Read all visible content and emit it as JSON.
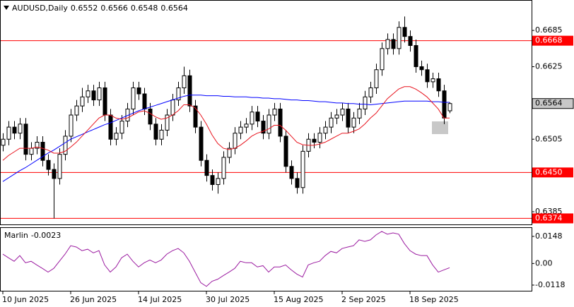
{
  "chart_data": [
    {
      "type": "candlestick",
      "title": "AUDUSD,Daily",
      "categories": [
        "10 Jun 2025",
        null,
        null,
        null,
        null,
        null,
        null,
        null,
        null,
        null,
        null,
        null,
        "26 Jun 2025",
        null,
        null,
        null,
        null,
        null,
        null,
        null,
        null,
        null,
        null,
        null,
        "14 Jul 2025",
        null,
        null,
        null,
        null,
        null,
        null,
        null,
        null,
        null,
        null,
        null,
        "30 Jul 2025",
        null,
        null,
        null,
        null,
        null,
        null,
        null,
        null,
        null,
        null,
        null,
        "15 Aug 2025",
        null,
        null,
        null,
        null,
        null,
        null,
        null,
        null,
        null,
        null,
        null,
        "2 Sep 2025",
        null,
        null,
        null,
        null,
        null,
        null,
        null,
        null,
        null,
        null,
        null,
        "18 Sep 2025",
        null,
        null,
        null,
        null,
        null,
        null,
        null
      ],
      "open": [
        0.6495,
        0.6505,
        0.6525,
        0.6515,
        0.653,
        0.648,
        0.649,
        0.65,
        0.647,
        0.6455,
        0.644,
        0.648,
        0.651,
        0.6545,
        0.656,
        0.6575,
        0.6585,
        0.657,
        0.659,
        0.6545,
        0.6505,
        0.6515,
        0.6535,
        0.6555,
        0.659,
        0.658,
        0.6555,
        0.653,
        0.6505,
        0.652,
        0.6545,
        0.657,
        0.659,
        0.661,
        0.656,
        0.6525,
        0.647,
        0.6445,
        0.643,
        0.644,
        0.6475,
        0.649,
        0.6515,
        0.6525,
        0.653,
        0.655,
        0.6535,
        0.6515,
        0.6545,
        0.6555,
        0.651,
        0.646,
        0.644,
        0.6425,
        0.6485,
        0.6505,
        0.65,
        0.6515,
        0.6525,
        0.654,
        0.6545,
        0.6555,
        0.6525,
        0.654,
        0.6555,
        0.6575,
        0.659,
        0.662,
        0.6655,
        0.667,
        0.6655,
        0.669,
        0.6675,
        0.666,
        0.6625,
        0.662,
        0.66,
        0.6605,
        0.6585,
        0.6552
      ],
      "high": [
        0.6515,
        0.6535,
        0.6535,
        0.654,
        0.654,
        0.65,
        0.651,
        0.651,
        0.648,
        0.6465,
        0.649,
        0.652,
        0.6555,
        0.657,
        0.659,
        0.6595,
        0.6595,
        0.66,
        0.66,
        0.6555,
        0.6525,
        0.6545,
        0.6565,
        0.66,
        0.66,
        0.659,
        0.6565,
        0.654,
        0.653,
        0.6555,
        0.658,
        0.66,
        0.6625,
        0.662,
        0.657,
        0.6535,
        0.648,
        0.6455,
        0.645,
        0.6485,
        0.65,
        0.6525,
        0.6535,
        0.654,
        0.656,
        0.656,
        0.6545,
        0.6555,
        0.6565,
        0.6565,
        0.652,
        0.647,
        0.645,
        0.6495,
        0.6515,
        0.6515,
        0.6525,
        0.6535,
        0.655,
        0.6555,
        0.6565,
        0.6565,
        0.655,
        0.6565,
        0.6585,
        0.66,
        0.663,
        0.6665,
        0.668,
        0.668,
        0.67,
        0.6708,
        0.6685,
        0.667,
        0.6635,
        0.663,
        0.6615,
        0.6615,
        0.6595,
        0.6566
      ],
      "low": [
        0.6485,
        0.6495,
        0.6505,
        0.6505,
        0.647,
        0.647,
        0.648,
        0.646,
        0.6445,
        0.6374,
        0.643,
        0.647,
        0.65,
        0.6535,
        0.655,
        0.6565,
        0.656,
        0.656,
        0.6535,
        0.6495,
        0.6495,
        0.6505,
        0.6525,
        0.6545,
        0.657,
        0.6545,
        0.652,
        0.6495,
        0.6495,
        0.651,
        0.6535,
        0.656,
        0.658,
        0.655,
        0.6515,
        0.646,
        0.6435,
        0.642,
        0.6415,
        0.643,
        0.6465,
        0.648,
        0.6505,
        0.6515,
        0.652,
        0.6525,
        0.6505,
        0.6505,
        0.6535,
        0.65,
        0.645,
        0.643,
        0.6415,
        0.6415,
        0.6475,
        0.649,
        0.649,
        0.6505,
        0.6515,
        0.653,
        0.6535,
        0.6515,
        0.6515,
        0.653,
        0.6545,
        0.6565,
        0.658,
        0.661,
        0.6645,
        0.6645,
        0.6645,
        0.6665,
        0.665,
        0.6615,
        0.661,
        0.659,
        0.659,
        0.6575,
        0.653,
        0.6548
      ],
      "close": [
        0.6505,
        0.6525,
        0.6515,
        0.653,
        0.648,
        0.649,
        0.65,
        0.647,
        0.6455,
        0.644,
        0.648,
        0.651,
        0.6545,
        0.656,
        0.6575,
        0.6585,
        0.657,
        0.659,
        0.6545,
        0.6505,
        0.6515,
        0.6535,
        0.6555,
        0.659,
        0.658,
        0.6555,
        0.653,
        0.6505,
        0.652,
        0.6545,
        0.657,
        0.659,
        0.661,
        0.656,
        0.6525,
        0.647,
        0.6445,
        0.643,
        0.644,
        0.6475,
        0.649,
        0.6515,
        0.6525,
        0.653,
        0.655,
        0.6535,
        0.6515,
        0.6545,
        0.6555,
        0.651,
        0.646,
        0.644,
        0.6425,
        0.6485,
        0.6505,
        0.65,
        0.6515,
        0.6525,
        0.654,
        0.6545,
        0.6555,
        0.6525,
        0.654,
        0.6555,
        0.6575,
        0.659,
        0.662,
        0.6655,
        0.667,
        0.6655,
        0.669,
        0.6675,
        0.666,
        0.6625,
        0.662,
        0.66,
        0.6605,
        0.6585,
        0.654,
        0.6564
      ],
      "series": [
        {
          "color": "#0000ff",
          "values": [
            0.6435,
            0.6441,
            0.6447,
            0.6453,
            0.6458,
            0.6464,
            0.647,
            0.6476,
            0.6482,
            0.6487,
            0.6493,
            0.6499,
            0.6505,
            0.6509,
            0.6513,
            0.6517,
            0.6521,
            0.6525,
            0.6529,
            0.6532,
            0.6536,
            0.654,
            0.6544,
            0.6548,
            0.6552,
            0.6555,
            0.6558,
            0.6561,
            0.6564,
            0.6567,
            0.657,
            0.6573,
            0.6576,
            0.6578,
            0.6578,
            0.6578,
            0.6577,
            0.6577,
            0.6577,
            0.6576,
            0.6576,
            0.6575,
            0.6575,
            0.6575,
            0.6574,
            0.6574,
            0.6573,
            0.6573,
            0.6572,
            0.6572,
            0.6571,
            0.657,
            0.657,
            0.6569,
            0.6569,
            0.6568,
            0.6567,
            0.6567,
            0.6566,
            0.6565,
            0.6565,
            0.6564,
            0.6564,
            0.6563,
            0.6563,
            0.6562,
            0.6563,
            0.6564,
            0.6565,
            0.6566,
            0.6567,
            0.6568,
            0.6568,
            0.6568,
            0.6568,
            0.6568,
            0.6567,
            0.6567,
            0.6566,
            0.6566
          ]
        },
        {
          "color": "#e8141e",
          "values": [
            0.647,
            0.6478,
            0.6484,
            0.649,
            0.649,
            0.649,
            0.6492,
            0.649,
            0.6487,
            0.6482,
            0.6482,
            0.6485,
            0.6492,
            0.65,
            0.651,
            0.652,
            0.653,
            0.654,
            0.6545,
            0.6545,
            0.654,
            0.6538,
            0.654,
            0.6545,
            0.655,
            0.6552,
            0.6548,
            0.6542,
            0.6538,
            0.654,
            0.6545,
            0.6552,
            0.6562,
            0.6562,
            0.6557,
            0.6545,
            0.653,
            0.6512,
            0.6498,
            0.649,
            0.6488,
            0.649,
            0.6495,
            0.6502,
            0.651,
            0.6515,
            0.6518,
            0.6522,
            0.6528,
            0.6528,
            0.652,
            0.651,
            0.65,
            0.6496,
            0.6495,
            0.6495,
            0.6497,
            0.65,
            0.6505,
            0.651,
            0.6515,
            0.6515,
            0.6518,
            0.6522,
            0.653,
            0.654,
            0.6548,
            0.656,
            0.6572,
            0.658,
            0.6588,
            0.6592,
            0.6592,
            0.6588,
            0.6582,
            0.6575,
            0.6565,
            0.6555,
            0.654,
            0.654
          ]
        }
      ],
      "ylim": [
        0.6364,
        0.6733
      ],
      "yticks": [
        0.6385,
        0.6505,
        0.6625,
        0.6685
      ],
      "levels": [
        0.6668,
        {
          "value": 0.645,
          "label": "0.6450"
        },
        0.6374
      ],
      "level_color": "#ff0000"
    },
    {
      "type": "line",
      "title": "Marlin",
      "color": "#9b1ba0",
      "values": [
        0.0051,
        0.0031,
        0.0012,
        0.0043,
        0.0004,
        0.0012,
        -0.0008,
        -0.0027,
        -0.0047,
        -0.0027,
        0.0012,
        0.0051,
        0.0097,
        0.009,
        0.007,
        0.0078,
        0.0058,
        0.007,
        -0.0008,
        -0.0047,
        -0.0019,
        0.0031,
        0.0051,
        0.0012,
        -0.0019,
        0.0004,
        0.0019,
        0.0004,
        0.0019,
        0.0051,
        0.007,
        0.0082,
        0.0058,
        0.0012,
        -0.0047,
        -0.0105,
        -0.0125,
        -0.0097,
        -0.0086,
        -0.0066,
        -0.0047,
        -0.0027,
        0.0012,
        0.0004,
        0.0004,
        -0.0019,
        -0.0012,
        -0.0047,
        -0.0019,
        -0.0019,
        -0.0008,
        -0.0035,
        -0.0058,
        -0.0074,
        -0.0008,
        0.0004,
        0.0012,
        0.0043,
        0.0066,
        0.0058,
        0.0082,
        0.009,
        0.0097,
        0.0129,
        0.0121,
        0.0129,
        0.0156,
        0.0175,
        0.016,
        0.0167,
        0.016,
        0.0109,
        0.007,
        0.0051,
        0.0043,
        0.0043,
        -0.0008,
        -0.0047,
        -0.0035,
        -0.0023
      ],
      "ylim": [
        -0.0149,
        0.0194
      ],
      "yticks": [
        0.0148,
        {
          "value": 0,
          "label": "0.00"
        },
        -0.0118
      ]
    }
  ]
}
